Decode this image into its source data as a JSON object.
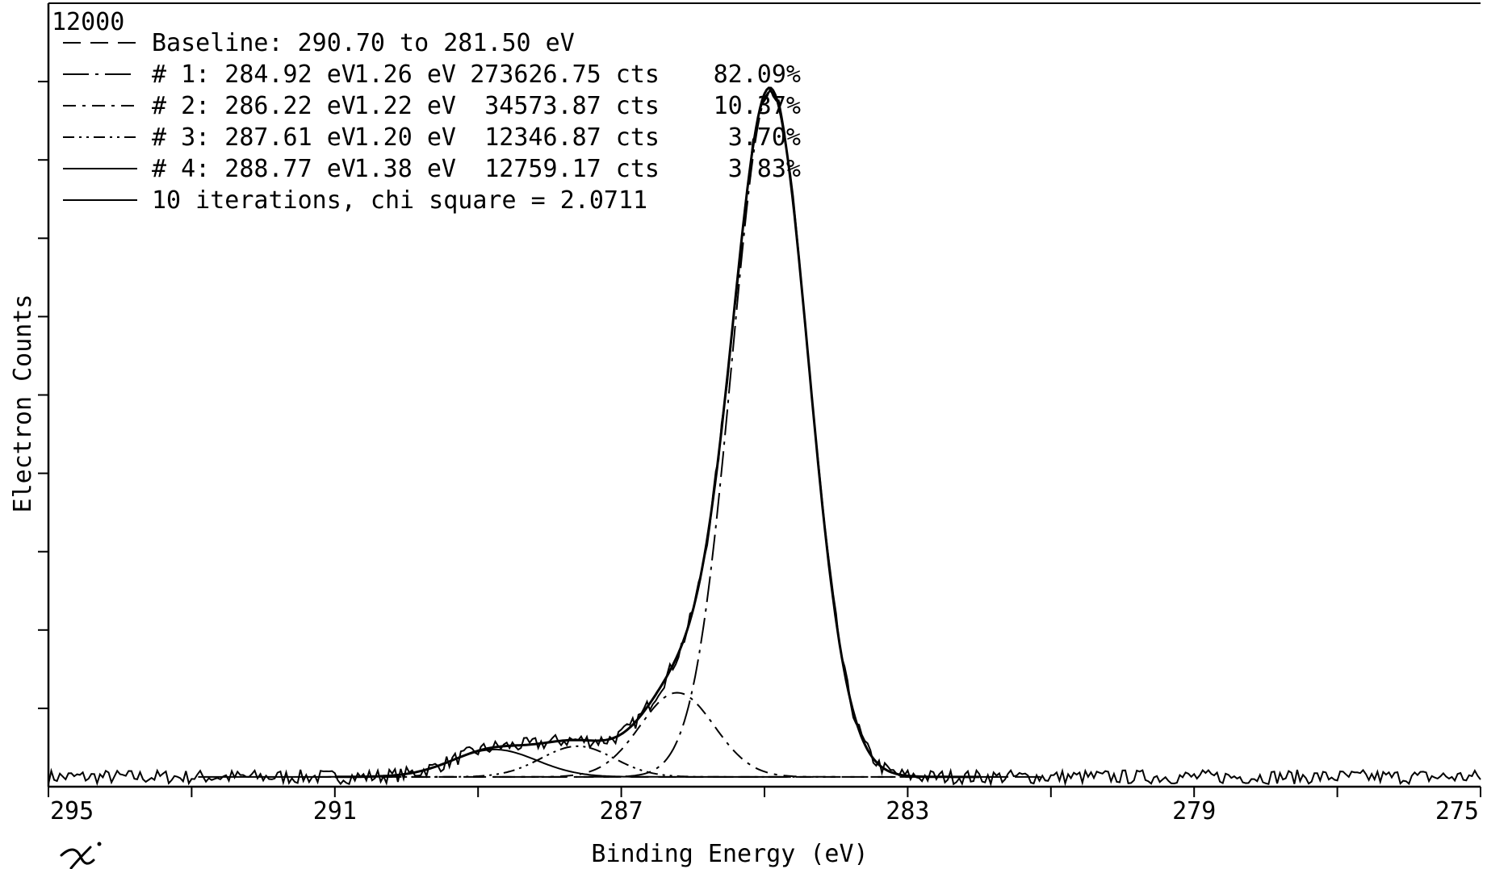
{
  "chart_data": {
    "type": "line",
    "title": "",
    "xlabel": "Binding Energy  (eV)",
    "ylabel": "Electron Counts",
    "xlim": [
      295,
      275
    ],
    "ylim": [
      0,
      12000
    ],
    "x_reversed": true,
    "x_tick_labels": [
      "295",
      "291",
      "287",
      "283",
      "279",
      "275"
    ],
    "x_tick_values": [
      295,
      291,
      287,
      283,
      279,
      275
    ],
    "y_top_label": "12000",
    "grid": false,
    "legend_position": "top-left",
    "legend": [
      {
        "style": "dash",
        "label": "Baseline:  290.70 to 281.50 eV",
        "width": "",
        "area": "",
        "percent": ""
      },
      {
        "style": "long-dash-dot",
        "label": "# 1:  284.92 eV",
        "width": "1.26 eV",
        "area": "273626.75 cts",
        "percent": "82.09%"
      },
      {
        "style": "dash-dot",
        "label": "# 2:  286.22 eV",
        "width": "1.22 eV",
        "area": "34573.87 cts",
        "percent": "10.37%"
      },
      {
        "style": "dash-dot-dot",
        "label": "# 3:  287.61 eV",
        "width": "1.20 eV",
        "area": "12346.87 cts",
        "percent": "3.70%"
      },
      {
        "style": "solid",
        "label": "# 4:  288.77 eV",
        "width": "1.38 eV",
        "area": "12759.17 cts",
        "percent": "3.83%"
      },
      {
        "style": "solid",
        "label": "10 iterations,  chi square = 2.0711",
        "width": "",
        "area": "",
        "percent": ""
      }
    ],
    "baseline": 150,
    "peaks": [
      {
        "name": "# 1",
        "center": 284.92,
        "fwhm": 1.26,
        "height": 10500
      },
      {
        "name": "# 2",
        "center": 286.22,
        "fwhm": 1.22,
        "height": 1290
      },
      {
        "name": "# 3",
        "center": 287.61,
        "fwhm": 1.2,
        "height": 470
      },
      {
        "name": "# 4",
        "center": 288.77,
        "fwhm": 1.38,
        "height": 420
      }
    ],
    "noise_amplitude": 110,
    "handwritten_mark": "x"
  }
}
